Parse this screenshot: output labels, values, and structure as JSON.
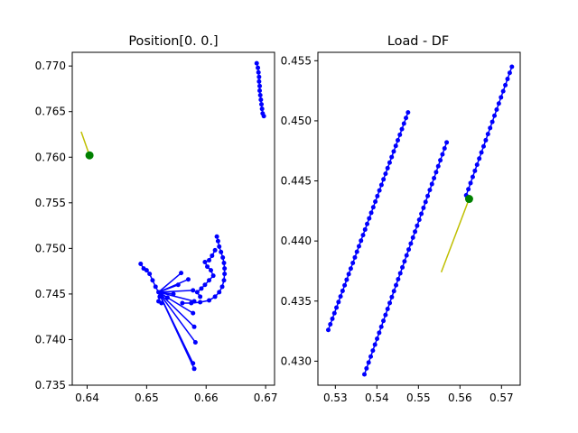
{
  "chart_data": [
    {
      "type": "scatter",
      "title": "Position[0. 0.]",
      "xlabel": "",
      "ylabel": "",
      "xlim": [
        0.6375,
        0.6715
      ],
      "ylim": [
        0.735,
        0.7715
      ],
      "xticks": [
        0.64,
        0.65,
        0.66,
        0.67
      ],
      "xtick_labels": [
        "0.64",
        "0.65",
        "0.66",
        "0.67"
      ],
      "yticks": [
        0.735,
        0.74,
        0.745,
        0.75,
        0.755,
        0.76,
        0.765,
        0.77
      ],
      "ytick_labels": [
        "0.735",
        "0.740",
        "0.745",
        "0.750",
        "0.755",
        "0.760",
        "0.765",
        "0.770"
      ],
      "grid": false,
      "colors": {
        "series": "#0000ff",
        "marker": "#008000",
        "direction": "#bfbf00"
      },
      "series": [
        {
          "style": "blue line with dots",
          "points": [
            [
              0.6685,
              0.7703
            ],
            [
              0.6687,
              0.7698
            ],
            [
              0.6688,
              0.7693
            ],
            [
              0.6689,
              0.7688
            ],
            [
              0.6689,
              0.7683
            ],
            [
              0.669,
              0.7678
            ],
            [
              0.669,
              0.7673
            ],
            [
              0.6691,
              0.7668
            ],
            [
              0.6692,
              0.7663
            ],
            [
              0.6693,
              0.7658
            ],
            [
              0.6694,
              0.7653
            ],
            [
              0.6695,
              0.7648
            ],
            [
              0.6697,
              0.7645
            ]
          ]
        },
        {
          "style": "blue line with dots",
          "points": [
            [
              0.649,
              0.7483
            ],
            [
              0.6495,
              0.7478
            ],
            [
              0.65,
              0.7476
            ],
            [
              0.6505,
              0.7472
            ],
            [
              0.651,
              0.7465
            ],
            [
              0.6515,
              0.7458
            ],
            [
              0.652,
              0.7452
            ],
            [
              0.6522,
              0.7447
            ],
            [
              0.652,
              0.7442
            ],
            [
              0.6525,
              0.744
            ]
          ]
        },
        {
          "style": "blue line with dots",
          "points": [
            [
              0.656,
              0.744
            ],
            [
              0.6575,
              0.744
            ],
            [
              0.659,
              0.7441
            ],
            [
              0.6605,
              0.7443
            ],
            [
              0.6615,
              0.7447
            ],
            [
              0.6622,
              0.7452
            ],
            [
              0.6627,
              0.7458
            ],
            [
              0.663,
              0.7465
            ],
            [
              0.6631,
              0.7472
            ],
            [
              0.6631,
              0.7478
            ],
            [
              0.663,
              0.7484
            ],
            [
              0.6628,
              0.749
            ],
            [
              0.6625,
              0.7496
            ],
            [
              0.6622,
              0.7502
            ],
            [
              0.662,
              0.7508
            ],
            [
              0.6618,
              0.7513
            ]
          ]
        },
        {
          "style": "blue fan segments",
          "origin": [
            0.652,
            0.7452
          ],
          "ends": [
            [
              0.658,
              0.7368
            ],
            [
              0.6578,
              0.7374
            ],
            [
              0.6582,
              0.7397
            ],
            [
              0.658,
              0.7414
            ],
            [
              0.6578,
              0.7429
            ],
            [
              0.658,
              0.7442
            ],
            [
              0.6578,
              0.7454
            ],
            [
              0.657,
              0.7466
            ],
            [
              0.6558,
              0.7473
            ],
            [
              0.6553,
              0.746
            ],
            [
              0.6545,
              0.745
            ],
            [
              0.6535,
              0.7446
            ]
          ]
        },
        {
          "style": "blue line with dots",
          "points": [
            [
              0.6615,
              0.7498
            ],
            [
              0.661,
              0.7492
            ],
            [
              0.6605,
              0.7487
            ],
            [
              0.6598,
              0.7485
            ],
            [
              0.6602,
              0.748
            ],
            [
              0.6608,
              0.7476
            ],
            [
              0.6612,
              0.747
            ],
            [
              0.6605,
              0.7465
            ],
            [
              0.6598,
              0.746
            ],
            [
              0.6592,
              0.7456
            ],
            [
              0.6585,
              0.7452
            ],
            [
              0.659,
              0.7447
            ]
          ]
        }
      ],
      "marker": {
        "x": 0.6404,
        "y": 0.7602
      },
      "direction_line": [
        [
          0.639,
          0.7628
        ],
        [
          0.6404,
          0.7602
        ]
      ]
    },
    {
      "type": "scatter",
      "title": "Load - DF",
      "xlabel": "",
      "ylabel": "",
      "xlim": [
        0.5258,
        0.5745
      ],
      "ylim": [
        0.428,
        0.4557
      ],
      "xticks": [
        0.53,
        0.54,
        0.55,
        0.56,
        0.57
      ],
      "xtick_labels": [
        "0.53",
        "0.54",
        "0.55",
        "0.56",
        "0.57"
      ],
      "yticks": [
        0.43,
        0.435,
        0.44,
        0.445,
        0.45,
        0.455
      ],
      "ytick_labels": [
        "0.430",
        "0.435",
        "0.440",
        "0.445",
        "0.450",
        "0.455"
      ],
      "grid": false,
      "colors": {
        "series": "#0000ff",
        "marker": "#008000",
        "direction": "#bfbf00"
      },
      "series": [
        {
          "style": "blue line with dots",
          "start": [
            0.5283,
            0.4326
          ],
          "end": [
            0.5475,
            0.4507
          ],
          "count": 40
        },
        {
          "style": "blue line with dots",
          "start": [
            0.537,
            0.4289
          ],
          "end": [
            0.5568,
            0.4482
          ],
          "count": 40
        },
        {
          "style": "blue line with dots",
          "start": [
            0.5615,
            0.4438
          ],
          "end": [
            0.5725,
            0.4545
          ],
          "count": 22
        }
      ],
      "marker": {
        "x": 0.5622,
        "y": 0.4435
      },
      "direction_line": [
        [
          0.5555,
          0.4374
        ],
        [
          0.5622,
          0.4435
        ]
      ]
    }
  ]
}
